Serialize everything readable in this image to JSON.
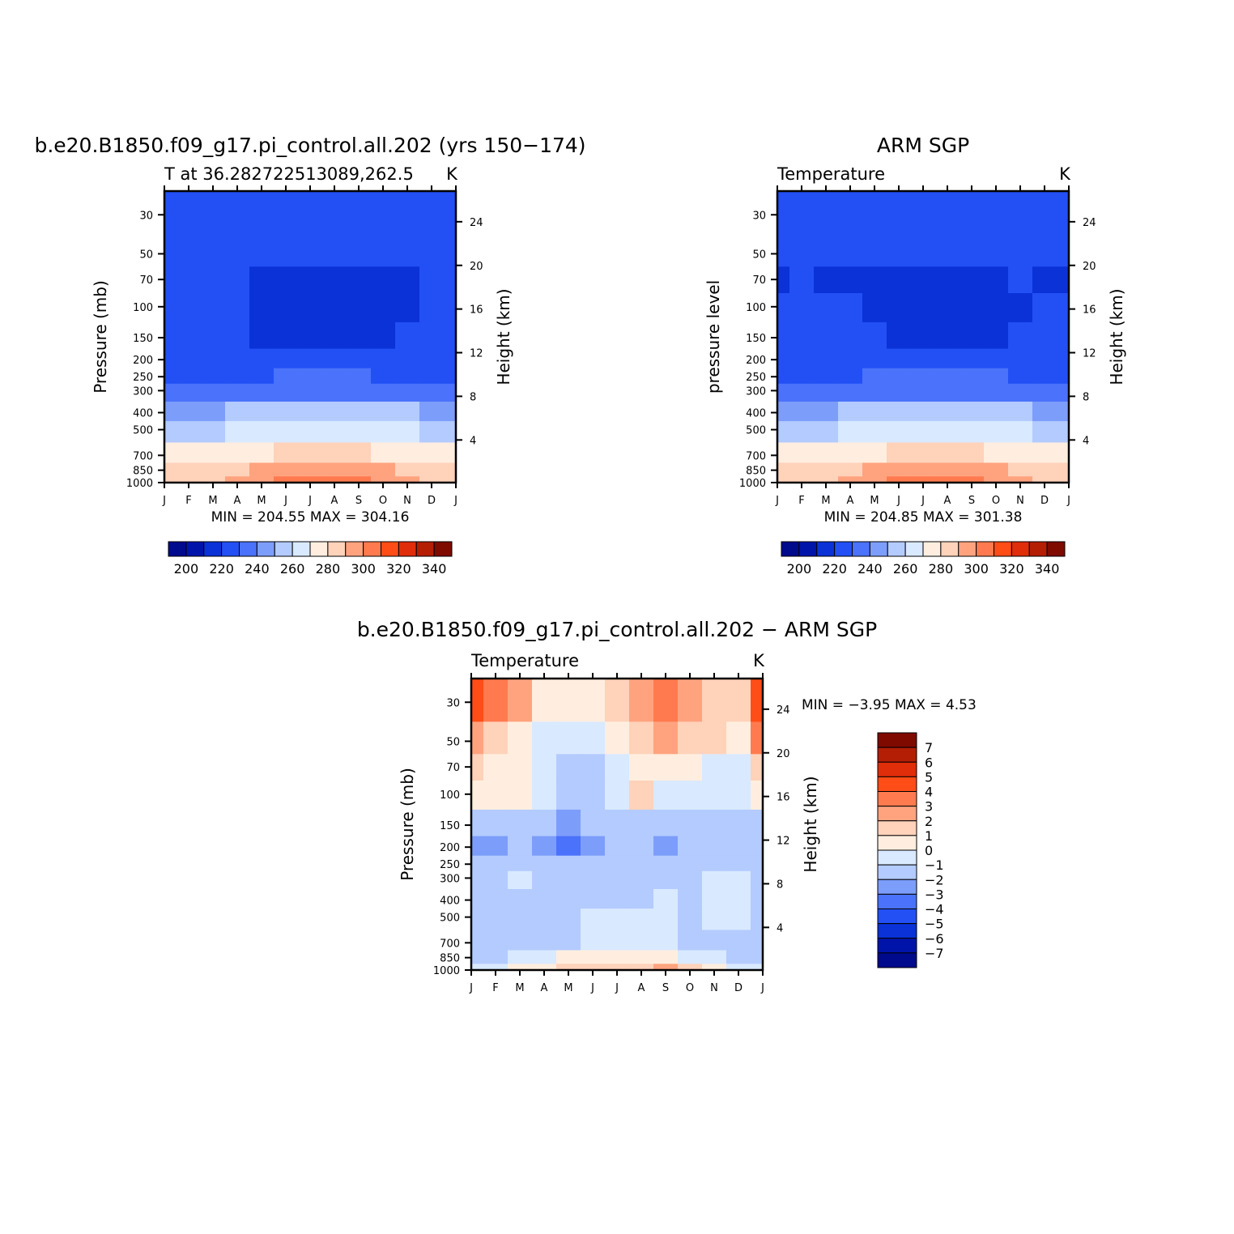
{
  "chart_data": [
    {
      "type": "heatmap",
      "title": "b.e20.B1850.f09_g17.pi_control.all.202 (yrs 150-174)",
      "subtitle_left": "T at 36.282722513089,262.5",
      "units": "K",
      "ylabel": "Pressure (mb)",
      "ylabel_right": "Height (km)",
      "x": [
        "J",
        "F",
        "M",
        "A",
        "M",
        "J",
        "J",
        "A",
        "S",
        "O",
        "N",
        "D",
        "J"
      ],
      "y_pressure_ticks": [
        "30",
        "50",
        "70",
        "100",
        "150",
        "200",
        "250",
        "300",
        "400",
        "500",
        "700",
        "850",
        "1000"
      ],
      "y_height_ticks": [
        "24",
        "20",
        "16",
        "12",
        "8",
        "4"
      ],
      "yscale": "log",
      "min_max_text": "MIN = 204.55 MAX = 304.16",
      "colorbar_labels": [
        "200",
        "220",
        "240",
        "260",
        "280",
        "300",
        "320",
        "340"
      ],
      "colorbar_orientation": "horizontal",
      "values": [
        [
          220,
          220,
          220,
          220,
          220,
          220,
          218,
          216,
          216,
          216,
          220,
          220,
          220
        ],
        [
          220,
          220,
          220,
          220,
          220,
          220,
          220,
          220,
          220,
          220,
          220,
          220,
          220
        ],
        [
          220,
          220,
          220,
          220,
          214,
          214,
          214,
          214,
          214,
          214,
          214,
          218,
          220
        ],
        [
          220,
          220,
          220,
          220,
          214,
          214,
          214,
          214,
          214,
          214,
          214,
          220,
          220
        ],
        [
          220,
          220,
          220,
          220,
          214,
          214,
          214,
          214,
          214,
          214,
          220,
          220,
          220
        ],
        [
          220,
          220,
          220,
          220,
          220,
          220,
          220,
          220,
          220,
          220,
          220,
          220,
          220
        ],
        [
          222,
          222,
          222,
          222,
          224,
          225,
          226,
          226,
          225,
          224,
          222,
          222,
          222
        ],
        [
          228,
          228,
          228,
          229,
          231,
          232,
          233,
          233,
          232,
          231,
          229,
          228,
          228
        ],
        [
          243,
          243,
          244,
          246,
          248,
          250,
          251,
          251,
          250,
          248,
          246,
          244,
          243
        ],
        [
          253,
          253,
          254,
          256,
          258,
          260,
          261,
          261,
          260,
          258,
          256,
          254,
          253
        ],
        [
          265,
          266,
          268,
          271,
          273,
          275,
          276,
          276,
          275,
          273,
          271,
          268,
          265
        ],
        [
          275,
          276,
          278,
          281,
          285,
          287,
          288,
          288,
          287,
          285,
          281,
          278,
          275
        ],
        [
          281,
          282,
          284,
          288,
          294,
          296,
          297,
          297,
          296,
          294,
          288,
          284,
          281
        ]
      ]
    },
    {
      "type": "heatmap",
      "title": "ARM SGP",
      "subtitle_left": "Temperature",
      "units": "K",
      "ylabel": "pressure level",
      "ylabel_right": "Height (km)",
      "x": [
        "J",
        "F",
        "M",
        "A",
        "M",
        "J",
        "J",
        "A",
        "S",
        "O",
        "N",
        "D",
        "J"
      ],
      "y_pressure_ticks": [
        "30",
        "50",
        "70",
        "100",
        "150",
        "200",
        "250",
        "300",
        "400",
        "500",
        "700",
        "850",
        "1000"
      ],
      "y_height_ticks": [
        "24",
        "20",
        "16",
        "12",
        "8",
        "4"
      ],
      "yscale": "log",
      "min_max_text": "MIN = 204.85 MAX = 301.38",
      "colorbar_labels": [
        "200",
        "220",
        "240",
        "260",
        "280",
        "300",
        "320",
        "340"
      ],
      "colorbar_orientation": "horizontal",
      "values": [
        [
          220,
          220,
          220,
          220,
          220,
          219,
          218,
          219,
          220,
          220,
          220,
          220,
          220
        ],
        [
          215,
          216,
          220,
          220,
          220,
          220,
          220,
          220,
          220,
          220,
          220,
          220,
          216
        ],
        [
          214,
          215,
          214,
          214,
          214,
          214,
          214,
          214,
          214,
          214,
          215,
          214,
          214
        ],
        [
          220,
          220,
          220,
          220,
          214,
          214,
          214,
          214,
          214,
          214,
          214,
          220,
          220
        ],
        [
          220,
          220,
          220,
          220,
          220,
          214,
          214,
          214,
          214,
          214,
          220,
          220,
          220
        ],
        [
          220,
          220,
          220,
          220,
          220,
          220,
          220,
          220,
          220,
          220,
          220,
          220,
          220
        ],
        [
          223,
          223,
          223,
          224,
          225,
          226,
          227,
          227,
          226,
          225,
          224,
          223,
          223
        ],
        [
          229,
          229,
          229,
          230,
          232,
          233,
          234,
          234,
          233,
          232,
          230,
          229,
          229
        ],
        [
          243,
          243,
          244,
          246,
          248,
          250,
          251,
          251,
          250,
          248,
          246,
          244,
          243
        ],
        [
          253,
          253,
          254,
          256,
          258,
          260,
          261,
          261,
          260,
          258,
          256,
          254,
          253
        ],
        [
          265,
          266,
          268,
          271,
          273,
          275,
          276,
          276,
          275,
          273,
          271,
          268,
          265
        ],
        [
          275,
          276,
          278,
          281,
          285,
          287,
          288,
          288,
          287,
          285,
          281,
          278,
          275
        ],
        [
          281,
          282,
          284,
          288,
          293,
          295,
          296,
          296,
          295,
          293,
          288,
          284,
          281
        ]
      ]
    },
    {
      "type": "heatmap",
      "title": "b.e20.B1850.f09_g17.pi_control.all.202 - ARM SGP",
      "subtitle_left": "Temperature",
      "units": "K",
      "ylabel": "Pressure (mb)",
      "ylabel_right": "Height (km)",
      "x": [
        "J",
        "F",
        "M",
        "A",
        "M",
        "J",
        "J",
        "A",
        "S",
        "O",
        "N",
        "D",
        "J"
      ],
      "y_pressure_ticks": [
        "30",
        "50",
        "70",
        "100",
        "150",
        "200",
        "250",
        "300",
        "400",
        "500",
        "700",
        "850",
        "1000"
      ],
      "y_height_ticks": [
        "24",
        "20",
        "16",
        "12",
        "8",
        "4"
      ],
      "yscale": "log",
      "min_max_text": "MIN = -3.95 MAX = 4.53",
      "colorbar_labels": [
        "7",
        "6",
        "5",
        "4",
        "3",
        "2",
        "1",
        "0",
        "-1",
        "-2",
        "-3",
        "-4",
        "-5",
        "-6",
        "-7"
      ],
      "colorbar_orientation": "vertical",
      "values": [
        [
          4.2,
          3.6,
          2.4,
          0.4,
          0.5,
          0.6,
          1.4,
          2.6,
          3.8,
          2.6,
          1.6,
          1.0,
          4.0
        ],
        [
          2.6,
          1.4,
          0.4,
          -0.6,
          -0.8,
          -0.2,
          0.4,
          1.4,
          2.0,
          1.8,
          1.2,
          0.6,
          3.0
        ],
        [
          1.4,
          0.5,
          0.5,
          -0.6,
          -1.6,
          -1.2,
          -0.6,
          0.2,
          0.6,
          0.6,
          -0.4,
          -0.6,
          1.2
        ],
        [
          0.6,
          0.5,
          0.5,
          -0.8,
          -1.6,
          -1.6,
          -0.8,
          1.2,
          -0.4,
          -0.4,
          -0.5,
          -0.6,
          0.4
        ],
        [
          -1.4,
          -1.6,
          -1.4,
          -2.0,
          -2.4,
          -1.6,
          -1.8,
          -1.4,
          -1.6,
          -1.2,
          -1.8,
          -1.4,
          -1.2
        ],
        [
          -2.4,
          -2.6,
          -2.0,
          -2.4,
          -3.2,
          -2.6,
          -2.0,
          -1.8,
          -2.8,
          -1.8,
          -1.4,
          -1.6,
          -1.6
        ],
        [
          -1.6,
          -1.8,
          -1.4,
          -1.4,
          -1.6,
          -1.6,
          -1.8,
          -1.6,
          -1.4,
          -1.4,
          -1.2,
          -1.2,
          -1.2
        ],
        [
          -1.4,
          -1.2,
          -0.4,
          -1.2,
          -1.4,
          -1.6,
          -1.6,
          -1.6,
          -1.4,
          -1.4,
          -0.6,
          -0.6,
          -1.2
        ],
        [
          -1.2,
          -1.2,
          -1.2,
          -1.4,
          -1.4,
          -1.4,
          -1.4,
          -1.4,
          -0.8,
          -1.2,
          -0.6,
          -0.8,
          -1.2
        ],
        [
          -1.2,
          -1.2,
          -1.2,
          -1.2,
          -1.2,
          -0.8,
          -0.6,
          -0.8,
          -0.8,
          -1.2,
          -0.8,
          -1.0,
          -1.2
        ],
        [
          -1.4,
          -1.4,
          -1.4,
          -1.4,
          -1.2,
          -0.8,
          -0.8,
          -0.8,
          -0.6,
          -1.2,
          -1.2,
          -1.4,
          -1.4
        ],
        [
          -1.4,
          -1.2,
          -0.8,
          -0.5,
          0.2,
          0.4,
          0.5,
          0.4,
          0.4,
          -0.6,
          -0.8,
          -1.2,
          -1.4
        ],
        [
          -0.8,
          -0.4,
          0.3,
          0.8,
          1.4,
          1.8,
          1.8,
          1.4,
          2.6,
          1.0,
          0.5,
          -0.4,
          -0.8
        ]
      ]
    }
  ],
  "colors": {
    "abs_scale": [
      "#000A8C",
      "#0014AA",
      "#0A32D7",
      "#2250F5",
      "#4A72FA",
      "#7D9DFA",
      "#B3CBFF",
      "#D9E9FF",
      "#FFEEDF",
      "#FFD2BA",
      "#FFA37F",
      "#FF7A4F",
      "#FF4D17",
      "#E02D0A",
      "#B41E05",
      "#7F0A00"
    ],
    "diff_scale": [
      "#000A8C",
      "#0014AA",
      "#0A32D7",
      "#2250F5",
      "#4A72FA",
      "#7D9DFA",
      "#B3CBFF",
      "#D9E9FF",
      "#FFEEDF",
      "#FFD2BA",
      "#FFA37F",
      "#FF7A4F",
      "#FF4D17",
      "#E02D0A",
      "#B41E05",
      "#7F0A00"
    ],
    "frame": "#000000"
  }
}
